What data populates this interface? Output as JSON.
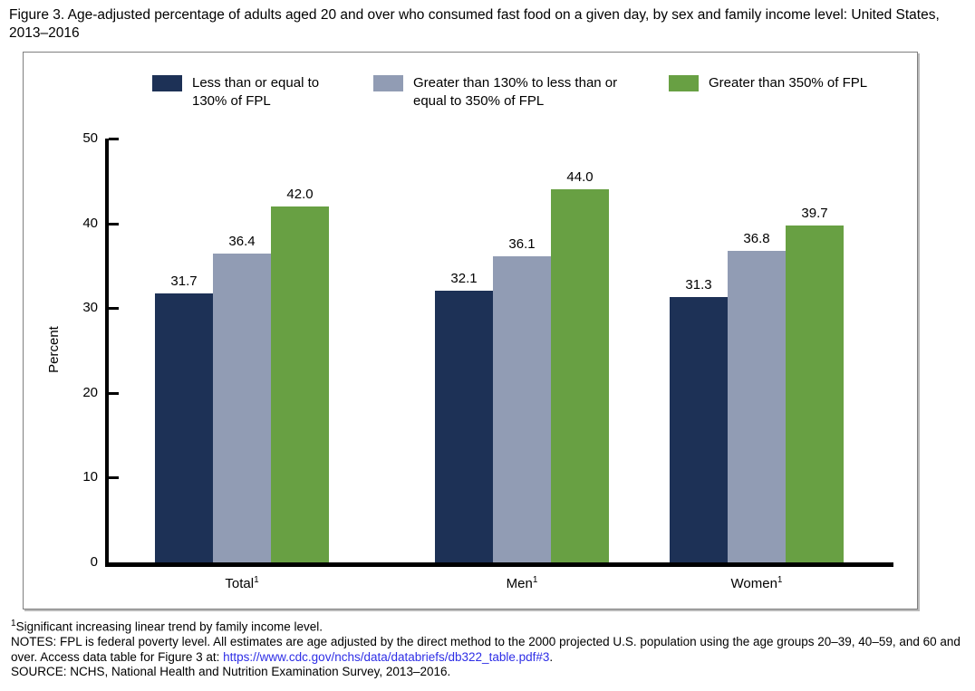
{
  "figure": {
    "title": "Figure 3. Age-adjusted percentage of adults aged 20 and over who consumed fast food on a given day, by sex and family income level: United States, 2013–2016"
  },
  "legend": {
    "items": [
      {
        "label": "Less than or equal to 130% of FPL",
        "color": "#1D3156"
      },
      {
        "label": "Greater than 130% to less than or equal to 350% of FPL",
        "color": "#919CB4"
      },
      {
        "label": "Greater than 350% of FPL",
        "color": "#68A043"
      }
    ]
  },
  "chart_data": {
    "type": "bar",
    "title": "Age-adjusted percentage of adults aged 20 and over who consumed fast food on a given day, by sex and family income level: United States, 2013–2016",
    "categories": [
      {
        "label": "Total",
        "sup": "1"
      },
      {
        "label": "Men",
        "sup": "1"
      },
      {
        "label": "Women",
        "sup": "1"
      }
    ],
    "series": [
      {
        "name": "Less than or equal to 130% of FPL",
        "color": "#1D3156",
        "values": [
          31.7,
          32.1,
          31.3
        ],
        "labels": [
          "31.7",
          "32.1",
          "31.3"
        ]
      },
      {
        "name": "Greater than 130% to less than or equal to 350% of FPL",
        "color": "#919CB4",
        "values": [
          36.4,
          36.1,
          36.8
        ],
        "labels": [
          "36.4",
          "36.1",
          "36.8"
        ]
      },
      {
        "name": "Greater than 350% of FPL",
        "color": "#68A043",
        "values": [
          42.0,
          44.0,
          39.7
        ],
        "labels": [
          "42.0",
          "44.0",
          "39.7"
        ]
      }
    ],
    "xlabel": "",
    "ylabel": "Percent",
    "ylim": [
      0,
      50
    ],
    "yticks": [
      0,
      10,
      20,
      30,
      40,
      50
    ],
    "grid": false,
    "legend_position": "top",
    "value_labels": true
  },
  "footnotes": {
    "note1_sup": "1",
    "note1_text": "Significant increasing linear trend by family income level.",
    "notes_prefix": "NOTES: FPL is federal poverty level. All estimates are age adjusted by the direct method to the 2000 projected U.S. population using the age groups 20–39, 40–59, and 60 and over. Access data table for Figure 3 at: ",
    "link_text": "https://www.cdc.gov/nchs/data/databriefs/db322_table.pdf#3",
    "link_suffix": ".",
    "source": "SOURCE: NCHS, National Health and Nutrition Examination Survey, 2013–2016."
  },
  "colors": {
    "link": "#2E2EE6",
    "axis": "#000000",
    "border": "#7F7F7F"
  }
}
